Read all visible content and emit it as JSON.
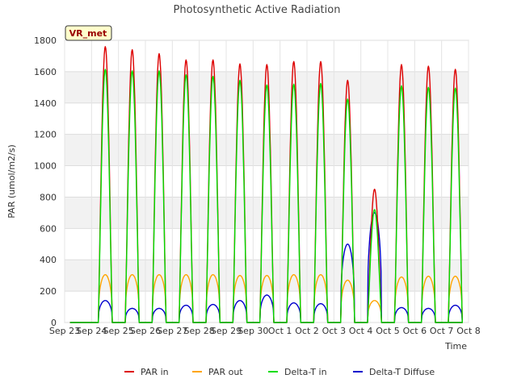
{
  "chart_data": {
    "type": "line",
    "title": "Photosynthetic Active Radiation",
    "xlabel": "Time",
    "ylabel": "PAR (umol/m2/s)",
    "station_label": "VR_met",
    "ylim": [
      0,
      1800
    ],
    "yticks": [
      0,
      200,
      400,
      600,
      800,
      1000,
      1200,
      1400,
      1600,
      1800
    ],
    "x_range": [
      "Sep 23",
      "Oct 8"
    ],
    "xtick_labels": [
      "Sep 23",
      "Sep 24",
      "Sep 25",
      "Sep 26",
      "Sep 27",
      "Sep 28",
      "Sep 29",
      "Sep 30",
      "Oct 1",
      "Oct 2",
      "Oct 3",
      "Oct 4",
      "Oct 5",
      "Oct 6",
      "Oct 7",
      "Oct 8"
    ],
    "grid": true,
    "legend_position": "bottom",
    "days": [
      "Sep 23",
      "Sep 24",
      "Sep 25",
      "Sep 26",
      "Sep 27",
      "Sep 28",
      "Sep 29",
      "Sep 30",
      "Oct 1",
      "Oct 2",
      "Oct 3",
      "Oct 4",
      "Oct 5",
      "Oct 6"
    ],
    "series": [
      {
        "name": "PAR in",
        "color": "#dd0000",
        "daily_peak": [
          1760,
          1740,
          1715,
          1675,
          1675,
          1650,
          1645,
          1665,
          1665,
          1545,
          850,
          1645,
          1635,
          1615
        ]
      },
      {
        "name": "PAR out",
        "color": "#ffa500",
        "daily_peak": [
          305,
          305,
          305,
          305,
          305,
          300,
          300,
          305,
          305,
          270,
          140,
          290,
          295,
          295
        ]
      },
      {
        "name": "Delta-T in",
        "color": "#00dd00",
        "daily_peak": [
          1615,
          1605,
          1605,
          1580,
          1570,
          1545,
          1515,
          1520,
          1525,
          1425,
          720,
          1510,
          1500,
          1495
        ]
      },
      {
        "name": "Delta-T Diffuse",
        "color": "#0000cc",
        "daily_peak": [
          140,
          90,
          90,
          110,
          115,
          140,
          175,
          125,
          120,
          500,
          700,
          95,
          90,
          110
        ]
      }
    ]
  }
}
